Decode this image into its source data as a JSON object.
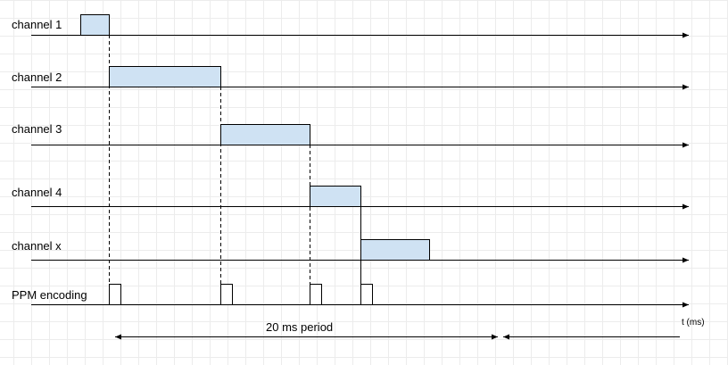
{
  "labels": {
    "channel_1": "channel 1",
    "channel_2": "channel 2",
    "channel_3": "channel 3",
    "channel_4": "channel 4",
    "channel_x": "channel x",
    "ppm": "PPM encoding"
  },
  "period_label": "20 ms period",
  "time_label": "t (ms)",
  "colors": {
    "pulse_fill": "#cfe2f3",
    "line": "#000000",
    "grid": "#ececec"
  }
}
